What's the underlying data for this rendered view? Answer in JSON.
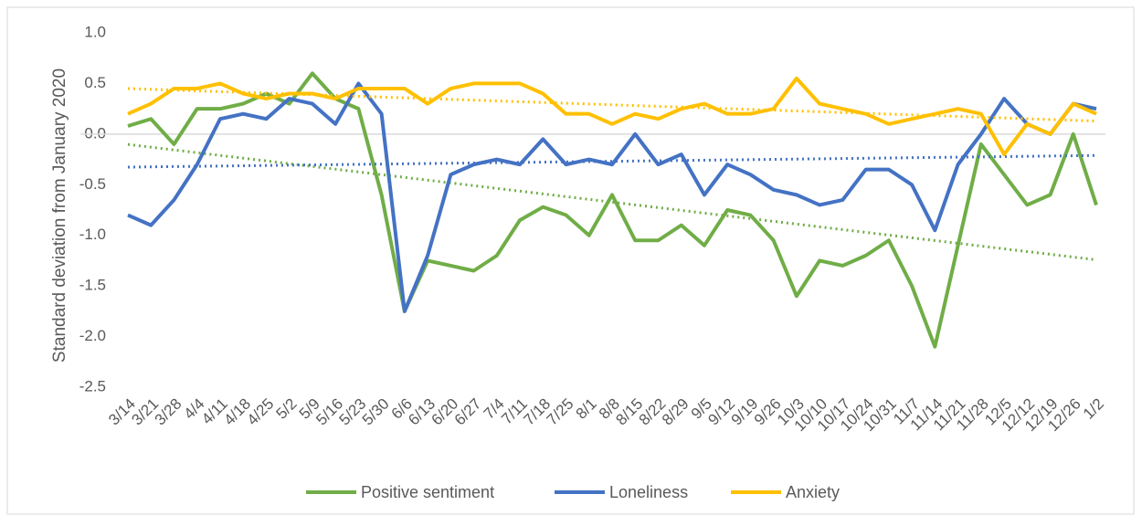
{
  "chart_data": {
    "type": "line",
    "y_label": "Standard deviation from January 2020",
    "categories": [
      "3/14",
      "3/21",
      "3/28",
      "4/4",
      "4/11",
      "4/18",
      "4/25",
      "5/2",
      "5/9",
      "5/16",
      "5/23",
      "5/30",
      "6/6",
      "6/13",
      "6/20",
      "6/27",
      "7/4",
      "7/11",
      "7/18",
      "7/25",
      "8/1",
      "8/8",
      "8/15",
      "8/22",
      "8/29",
      "9/5",
      "9/12",
      "9/19",
      "9/26",
      "10/3",
      "10/10",
      "10/17",
      "10/24",
      "10/31",
      "11/7",
      "11/14",
      "11/21",
      "11/28",
      "12/5",
      "12/12",
      "12/19",
      "12/26",
      "1/2"
    ],
    "series": [
      {
        "name": "Positive sentiment",
        "color": "#70ad47",
        "trendline": true,
        "values": [
          0.08,
          0.15,
          -0.1,
          0.25,
          0.25,
          0.3,
          0.4,
          0.3,
          0.6,
          0.35,
          0.25,
          -0.6,
          -1.75,
          -1.25,
          -1.3,
          -1.35,
          -1.2,
          -0.85,
          -0.72,
          -0.8,
          -1.0,
          -0.6,
          -1.05,
          -1.05,
          -0.9,
          -1.1,
          -0.75,
          -0.8,
          -1.05,
          -1.6,
          -1.25,
          -1.3,
          -1.2,
          -1.05,
          -1.5,
          -2.1,
          -1.1,
          -0.1,
          -0.4,
          -0.7,
          -0.6,
          0.0,
          -0.7
        ]
      },
      {
        "name": "Loneliness",
        "color": "#4472c4",
        "trendline": true,
        "values": [
          -0.8,
          -0.9,
          -0.65,
          -0.3,
          0.15,
          0.2,
          0.15,
          0.35,
          0.3,
          0.1,
          0.5,
          0.2,
          -1.75,
          -1.2,
          -0.4,
          -0.3,
          -0.25,
          -0.3,
          -0.05,
          -0.3,
          -0.25,
          -0.3,
          0.0,
          -0.3,
          -0.2,
          -0.6,
          -0.3,
          -0.4,
          -0.55,
          -0.6,
          -0.7,
          -0.65,
          -0.35,
          -0.35,
          -0.5,
          -0.95,
          -0.3,
          0.0,
          0.35,
          0.1,
          0.0,
          0.3,
          0.25
        ]
      },
      {
        "name": "Anxiety",
        "color": "#ffc000",
        "trendline": true,
        "values": [
          0.2,
          0.3,
          0.45,
          0.45,
          0.5,
          0.4,
          0.35,
          0.4,
          0.4,
          0.35,
          0.45,
          0.45,
          0.45,
          0.3,
          0.45,
          0.5,
          0.5,
          0.5,
          0.4,
          0.2,
          0.2,
          0.1,
          0.2,
          0.15,
          0.25,
          0.3,
          0.2,
          0.2,
          0.25,
          0.55,
          0.3,
          0.25,
          0.2,
          0.1,
          0.15,
          0.2,
          0.25,
          0.2,
          -0.2,
          0.1,
          0.0,
          0.3,
          0.2
        ]
      }
    ],
    "ylim": [
      -2.5,
      1.0
    ],
    "yticks": [
      {
        "value": -2.5,
        "label": "-2.5"
      },
      {
        "value": -2,
        "label": "-2.0"
      },
      {
        "value": -1.5,
        "label": "-1.5"
      },
      {
        "value": -1,
        "label": "-1.0"
      },
      {
        "value": -0.5,
        "label": "-0.5"
      },
      {
        "value": 0,
        "label": "0.0"
      },
      {
        "value": 0.5,
        "label": "0.5"
      },
      {
        "value": 1,
        "label": "1.0"
      }
    ],
    "grid": false,
    "legend": "bottom"
  }
}
